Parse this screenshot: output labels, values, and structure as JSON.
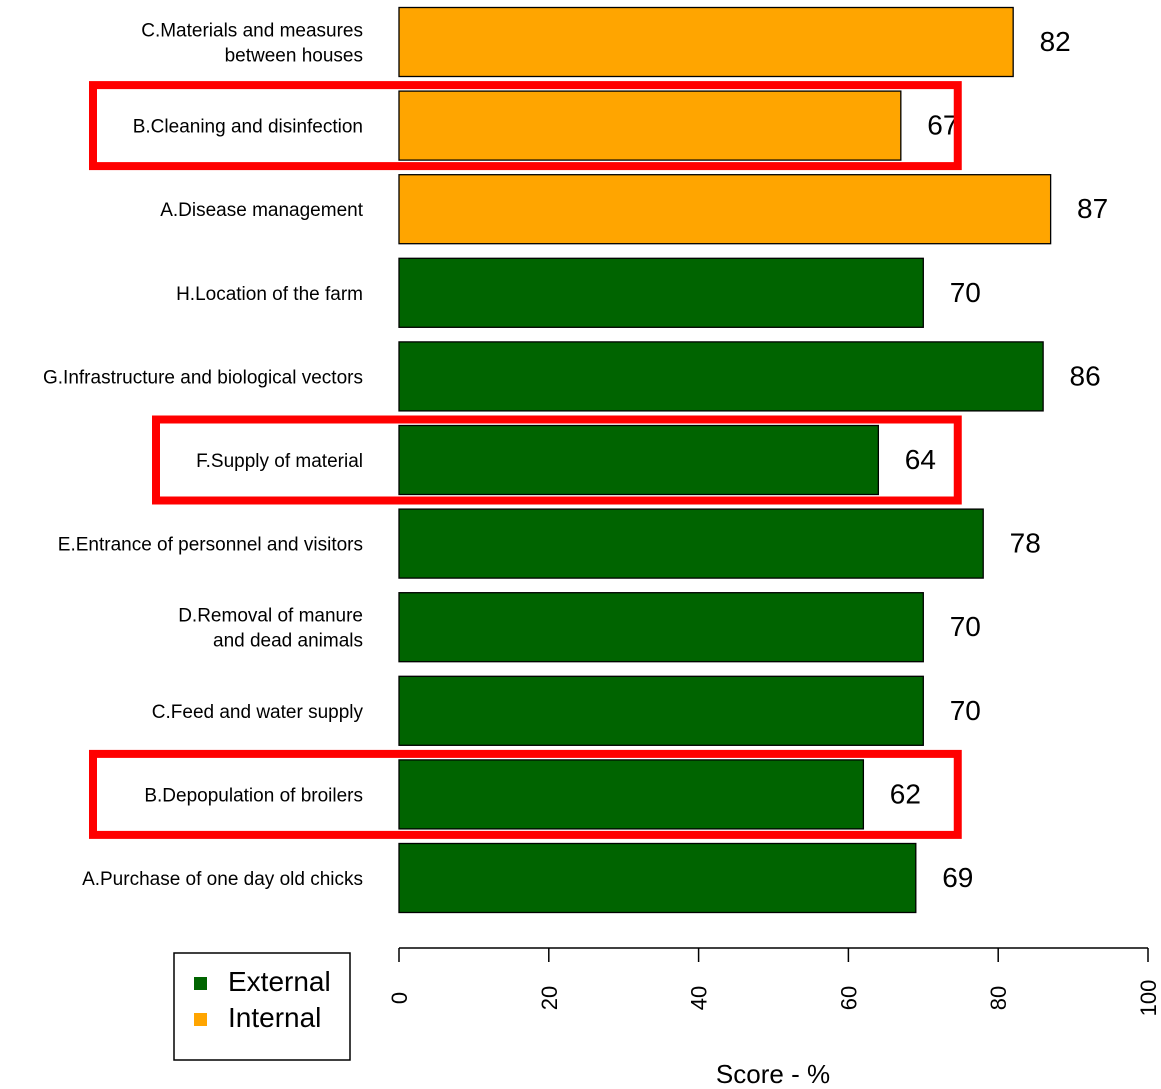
{
  "chart_data": {
    "type": "bar",
    "orientation": "horizontal",
    "categories": [
      "C.Materials and measures between houses",
      "B.Cleaning and disinfection",
      "A.Disease management",
      "H.Location of the farm",
      "G.Infrastructure and biological vectors",
      "F.Supply of material",
      "E.Entrance of personnel and visitors",
      "D.Removal of manure and dead animals",
      "C.Feed and water supply",
      "B.Depopulation of broilers",
      "A.Purchase of one day old chicks"
    ],
    "category_lines": [
      [
        "C.Materials and measures",
        "between houses"
      ],
      [
        "B.Cleaning and disinfection"
      ],
      [
        "A.Disease management"
      ],
      [
        "H.Location of the farm"
      ],
      [
        "G.Infrastructure and biological vectors"
      ],
      [
        "F.Supply of material"
      ],
      [
        "E.Entrance of personnel and visitors"
      ],
      [
        "D.Removal of manure",
        "and dead animals"
      ],
      [
        "C.Feed and water supply"
      ],
      [
        "B.Depopulation of broilers"
      ],
      [
        "A.Purchase of one day old chicks"
      ]
    ],
    "values": [
      82,
      67,
      87,
      70,
      86,
      64,
      78,
      70,
      70,
      62,
      69
    ],
    "groups": [
      "Internal",
      "Internal",
      "Internal",
      "External",
      "External",
      "External",
      "External",
      "External",
      "External",
      "External",
      "External"
    ],
    "highlighted": [
      false,
      true,
      false,
      false,
      false,
      true,
      false,
      false,
      false,
      true,
      false
    ],
    "group_colors": {
      "External": "#006400",
      "Internal": "#FFA500"
    },
    "highlight_color": "#FF0000",
    "xlabel": "Score - %",
    "xlim": [
      0,
      100
    ],
    "xticks": [
      0,
      20,
      40,
      60,
      80,
      100
    ],
    "legend": {
      "position": "bottom-left",
      "entries": [
        {
          "label": "External",
          "group": "External"
        },
        {
          "label": "Internal",
          "group": "Internal"
        }
      ]
    },
    "grid": false
  }
}
